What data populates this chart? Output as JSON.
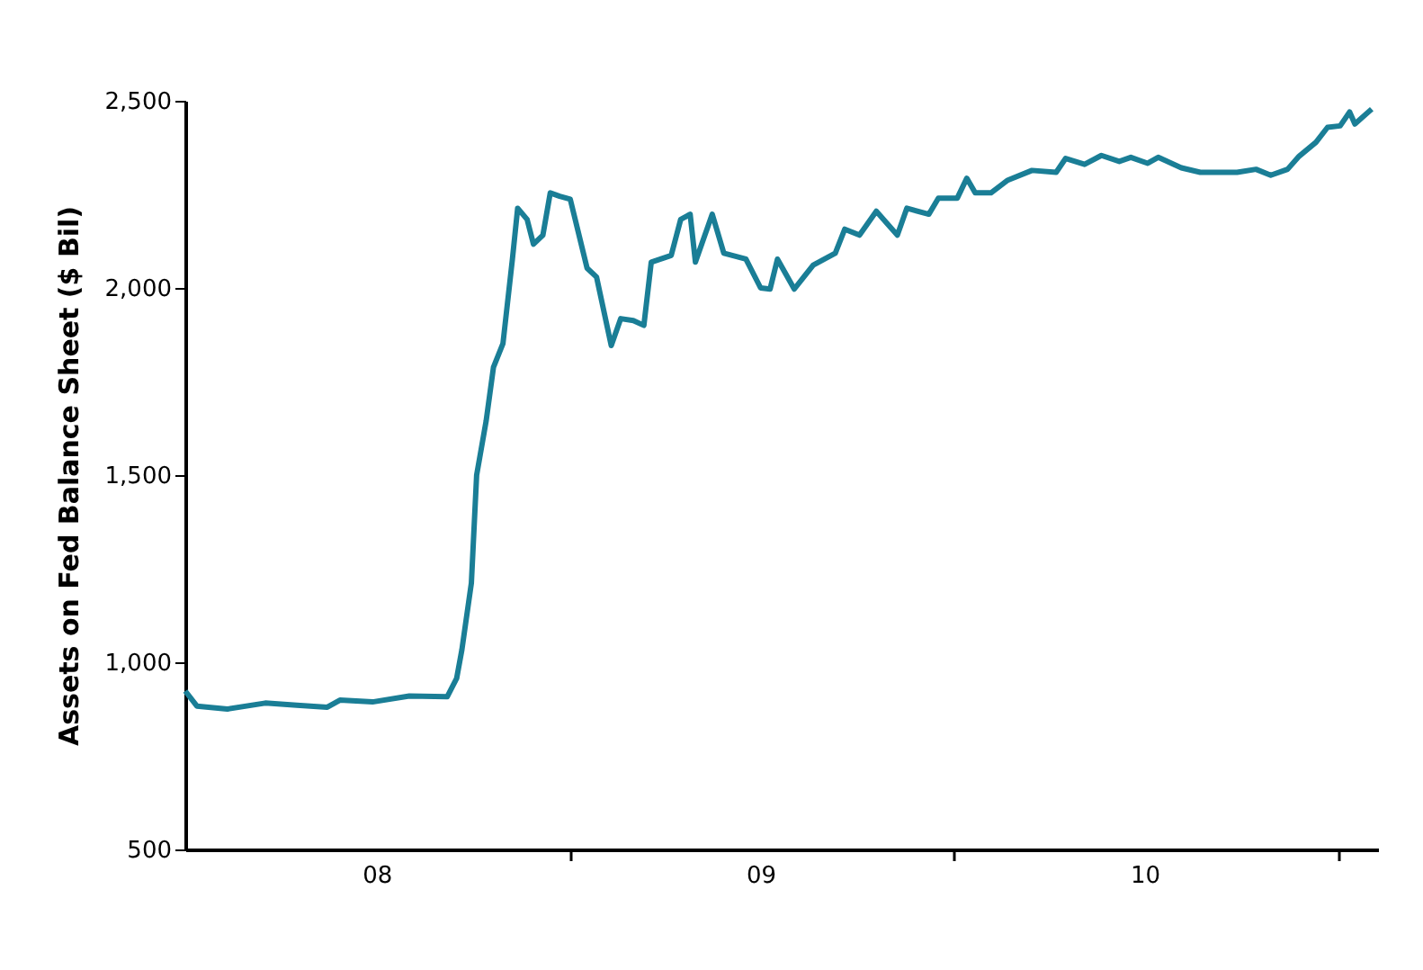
{
  "chart_data": {
    "type": "line",
    "ylabel": "Assets on Fed Balance Sheet ($ Bil)",
    "x": [
      "2008-01-01",
      "2008-01-12",
      "2008-02-10",
      "2008-03-17",
      "2008-04-16",
      "2008-05-15",
      "2008-05-27",
      "2008-06-27",
      "2008-08-01",
      "2008-09-06",
      "2008-09-15",
      "2008-09-20",
      "2008-09-29",
      "2008-10-04",
      "2008-10-13",
      "2008-10-20",
      "2008-10-29",
      "2008-11-07",
      "2008-11-12",
      "2008-11-21",
      "2008-11-27",
      "2008-12-06",
      "2008-12-13",
      "2008-12-22",
      "2009-01-01",
      "2009-01-17",
      "2009-01-26",
      "2009-02-09",
      "2009-02-18",
      "2009-03-02",
      "2009-03-12",
      "2009-03-19",
      "2009-04-07",
      "2009-04-16",
      "2009-04-25",
      "2009-04-30",
      "2009-05-09",
      "2009-05-16",
      "2009-05-27",
      "2009-06-17",
      "2009-07-01",
      "2009-07-10",
      "2009-07-17",
      "2009-08-02",
      "2009-08-11",
      "2009-08-20",
      "2009-09-10",
      "2009-09-19",
      "2009-10-03",
      "2009-10-19",
      "2009-11-08",
      "2009-11-17",
      "2009-12-08",
      "2009-12-17",
      "2010-01-04",
      "2010-01-13",
      "2010-01-21",
      "2010-02-05",
      "2010-02-21",
      "2010-03-16",
      "2010-04-08",
      "2010-04-17",
      "2010-05-05",
      "2010-05-21",
      "2010-06-07",
      "2010-06-18",
      "2010-07-04",
      "2010-07-14",
      "2010-08-05",
      "2010-08-23",
      "2010-09-27",
      "2010-10-15",
      "2010-10-29",
      "2010-11-14",
      "2010-11-25",
      "2010-12-11",
      "2010-12-22",
      "2011-01-03",
      "2011-01-12",
      "2011-01-17",
      "2011-02-02"
    ],
    "series": [
      {
        "color": "#1a7e96",
        "values": [
          923,
          883,
          875,
          891,
          885,
          880,
          899,
          894,
          910,
          908,
          957,
          1034,
          1212,
          1500,
          1644,
          1788,
          1851,
          2077,
          2213,
          2183,
          2117,
          2141,
          2254,
          2245,
          2237,
          2053,
          2029,
          1846,
          1918,
          1913,
          1900,
          2069,
          2087,
          2183,
          2197,
          2069,
          2141,
          2197,
          2093,
          2077,
          2000,
          1997,
          2077,
          1997,
          2029,
          2061,
          2093,
          2157,
          2141,
          2205,
          2141,
          2213,
          2197,
          2240,
          2240,
          2293,
          2254,
          2254,
          2288,
          2314,
          2309,
          2346,
          2330,
          2354,
          2338,
          2349,
          2333,
          2349,
          2321,
          2309,
          2309,
          2317,
          2301,
          2317,
          2352,
          2389,
          2429,
          2433,
          2470,
          2438,
          2478
        ]
      }
    ],
    "xlim": [
      "2008-01-01",
      "2011-02-08"
    ],
    "xticks": [
      {
        "value": "2008-07-01",
        "label": "08"
      },
      {
        "value": "2009-01-01",
        "label": null
      },
      {
        "value": "2009-07-01",
        "label": "09"
      },
      {
        "value": "2010-01-01",
        "label": null
      },
      {
        "value": "2010-07-01",
        "label": "10"
      },
      {
        "value": "2011-01-01",
        "label": null
      }
    ],
    "ylim": [
      500,
      2500
    ],
    "yticks": [
      {
        "value": 500,
        "label": "500"
      },
      {
        "value": 1000,
        "label": "1,000"
      },
      {
        "value": 1500,
        "label": "1,500"
      },
      {
        "value": 2000,
        "label": "2,000"
      },
      {
        "value": 2500,
        "label": "2,500"
      }
    ],
    "grid": false,
    "marker": "none",
    "line_style": "solid"
  }
}
